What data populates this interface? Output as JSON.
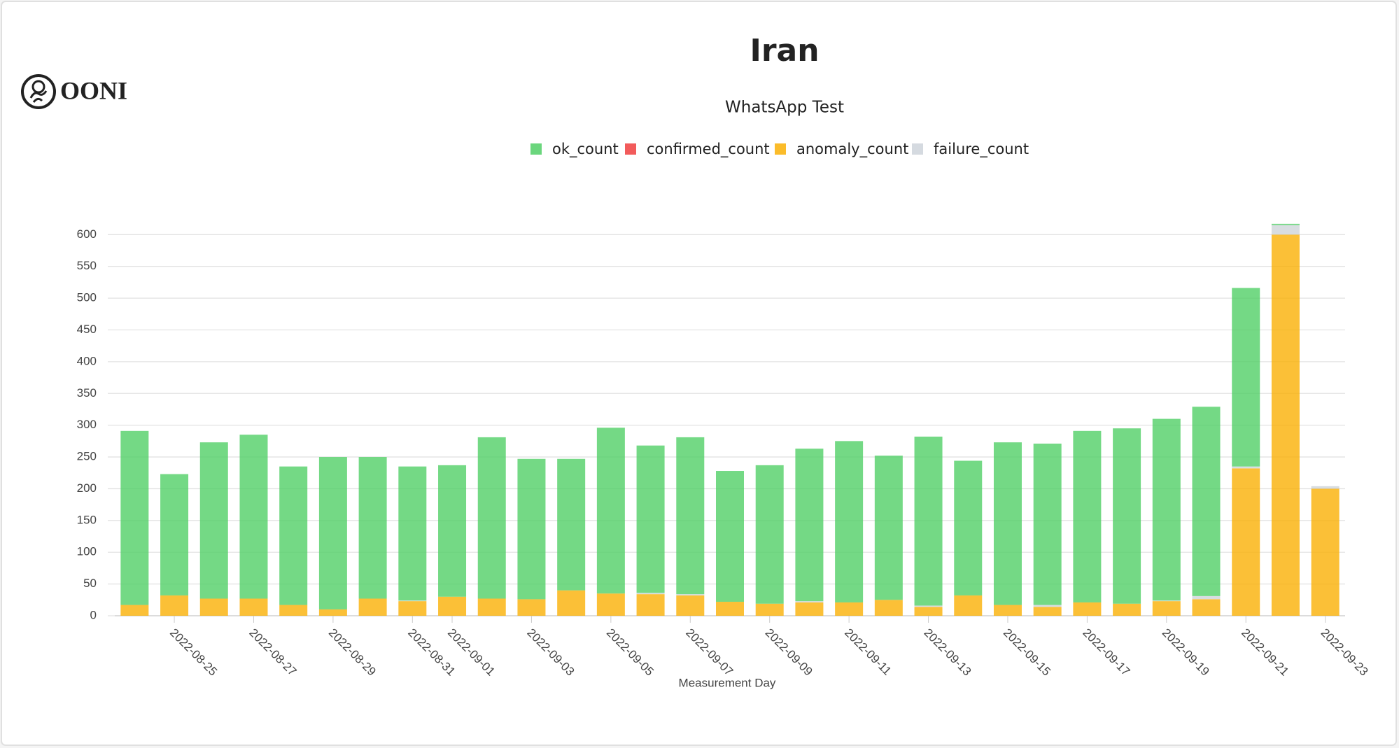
{
  "logo": "OONI",
  "chart_data": {
    "type": "bar",
    "stacked": true,
    "title": "Iran",
    "subtitle": "WhatsApp Test",
    "x_label": "Measurement Day",
    "categories": [
      null,
      "2022-08-25",
      null,
      "2022-08-27",
      null,
      "2022-08-29",
      null,
      "2022-08-31",
      "2022-09-01",
      null,
      "2022-09-03",
      null,
      "2022-09-05",
      null,
      "2022-09-07",
      null,
      "2022-09-09",
      null,
      "2022-09-11",
      null,
      "2022-09-13",
      null,
      "2022-09-15",
      null,
      "2022-09-17",
      null,
      "2022-09-19",
      null,
      "2022-09-21",
      null,
      "2022-09-23"
    ],
    "series": [
      {
        "name": "ok_count",
        "color": "#51cf66",
        "values": [
          274,
          191,
          246,
          258,
          218,
          240,
          223,
          211,
          207,
          254,
          221,
          207,
          261,
          232,
          247,
          206,
          218,
          240,
          254,
          227,
          266,
          212,
          256,
          254,
          270,
          276,
          286,
          298,
          281,
          2,
          0
        ]
      },
      {
        "name": "confirmed_count",
        "color": "#f03e3e",
        "values": [
          0,
          0,
          0,
          0,
          0,
          0,
          0,
          0,
          0,
          0,
          0,
          0,
          0,
          0,
          0,
          0,
          0,
          0,
          0,
          0,
          0,
          0,
          0,
          0,
          0,
          0,
          0,
          0,
          0,
          0,
          0
        ]
      },
      {
        "name": "anomaly_count",
        "color": "#fab005",
        "values": [
          17,
          32,
          27,
          27,
          17,
          10,
          27,
          23,
          30,
          27,
          26,
          40,
          35,
          34,
          32,
          22,
          19,
          21,
          21,
          25,
          14,
          32,
          17,
          14,
          21,
          19,
          23,
          26,
          232,
          600,
          200
        ]
      },
      {
        "name": "failure_count",
        "color": "#ced4da",
        "values": [
          0,
          0,
          0,
          0,
          0,
          0,
          0,
          1,
          0,
          0,
          0,
          0,
          0,
          2,
          2,
          0,
          0,
          2,
          0,
          0,
          2,
          0,
          0,
          3,
          0,
          0,
          1,
          5,
          3,
          15,
          4
        ]
      }
    ],
    "ylim": [
      0,
      640
    ],
    "yticks": [
      0,
      50,
      100,
      150,
      200,
      250,
      300,
      350,
      400,
      450,
      500,
      550,
      600
    ],
    "grid": true,
    "legend": "top"
  }
}
